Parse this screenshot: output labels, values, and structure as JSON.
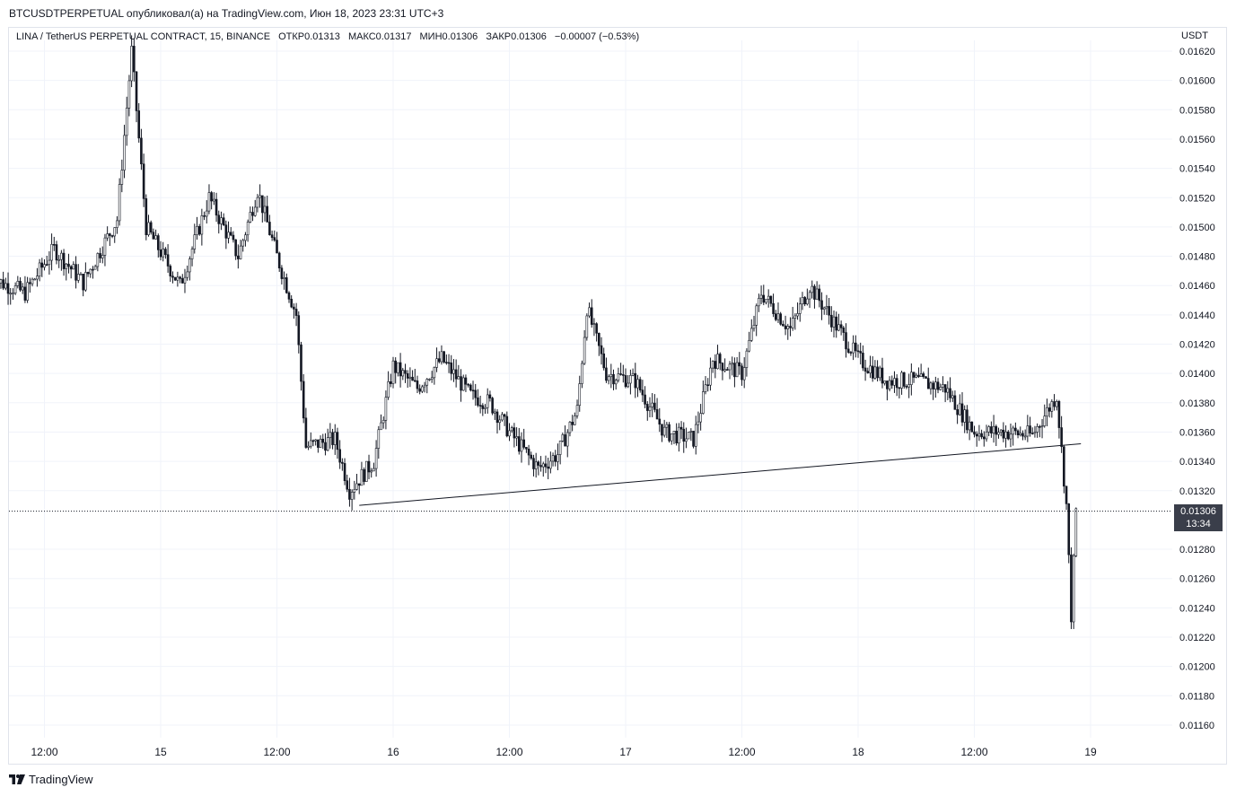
{
  "header": {
    "publisher_line": "BTCUSDTPERPETUAL опубликовал(а) на TradingView.com, Июн 18, 2023 23:31 UTC+3"
  },
  "legend": {
    "symbol": "LINA / TetherUS PERPETUAL CONTRACT, 15, BINANCE",
    "open": "ОТКР0.01313",
    "high": "МАКС0.01317",
    "low": "МИН0.01306",
    "close": "ЗАКР0.01306",
    "change": "−0.00007 (−0.53%)"
  },
  "currency": "USDT",
  "last_price": {
    "price": "0.01306",
    "countdown": "13:34"
  },
  "footer": {
    "brand": "TradingView",
    "logo_icon": "tradingview-logo-icon"
  },
  "colors": {
    "candles": "#131722",
    "grid": "#f0f3fa",
    "axis_text": "#131722",
    "tag_bg": "#3a3e4a"
  },
  "chart_data": {
    "type": "line",
    "title": "LINA / TetherUS PERPETUAL CONTRACT, 15, BINANCE",
    "xlabel": "",
    "ylabel": "",
    "y_ticks": [
      "0.01620",
      "0.01600",
      "0.01580",
      "0.01560",
      "0.01540",
      "0.01520",
      "0.01500",
      "0.01480",
      "0.01460",
      "0.01440",
      "0.01420",
      "0.01400",
      "0.01380",
      "0.01360",
      "0.01340",
      "0.01320",
      "0.01280",
      "0.01260",
      "0.01240",
      "0.01220",
      "0.01200",
      "0.01180",
      "0.01160"
    ],
    "x_ticks": [
      "12:00",
      "15",
      "12:00",
      "16",
      "12:00",
      "17",
      "12:00",
      "18",
      "12:00",
      "19"
    ],
    "ylim": [
      0.01152,
      0.01623
    ],
    "grid": true,
    "approx_close_path": [
      {
        "t": "14 06:30",
        "v": 0.01465
      },
      {
        "t": "14 10:00",
        "v": 0.01455
      },
      {
        "t": "14 13:00",
        "v": 0.01485
      },
      {
        "t": "14 16:00",
        "v": 0.01462
      },
      {
        "t": "14 19:30",
        "v": 0.01505
      },
      {
        "t": "14 21:00",
        "v": 0.0162
      },
      {
        "t": "14 22:30",
        "v": 0.015
      },
      {
        "t": "15 02:00",
        "v": 0.0146
      },
      {
        "t": "15 05:00",
        "v": 0.0152
      },
      {
        "t": "15 08:00",
        "v": 0.0148
      },
      {
        "t": "15 10:00",
        "v": 0.01525
      },
      {
        "t": "15 12:00",
        "v": 0.0148
      },
      {
        "t": "15 14:00",
        "v": 0.0144
      },
      {
        "t": "15 15:00",
        "v": 0.0135
      },
      {
        "t": "15 18:00",
        "v": 0.01355
      },
      {
        "t": "15 19:30",
        "v": 0.0132
      },
      {
        "t": "15 22:00",
        "v": 0.0134
      },
      {
        "t": "16 00:00",
        "v": 0.01405
      },
      {
        "t": "16 02:30",
        "v": 0.0139
      },
      {
        "t": "16 05:00",
        "v": 0.0141
      },
      {
        "t": "16 08:00",
        "v": 0.01385
      },
      {
        "t": "16 10:00",
        "v": 0.0138
      },
      {
        "t": "16 12:00",
        "v": 0.0136
      },
      {
        "t": "16 15:00",
        "v": 0.01335
      },
      {
        "t": "16 17:00",
        "v": 0.01345
      },
      {
        "t": "16 19:00",
        "v": 0.01375
      },
      {
        "t": "16 20:00",
        "v": 0.01445
      },
      {
        "t": "16 22:00",
        "v": 0.014
      },
      {
        "t": "17 01:00",
        "v": 0.01395
      },
      {
        "t": "17 04:00",
        "v": 0.0136
      },
      {
        "t": "17 07:00",
        "v": 0.01355
      },
      {
        "t": "17 09:00",
        "v": 0.0141
      },
      {
        "t": "17 12:00",
        "v": 0.014
      },
      {
        "t": "17 14:00",
        "v": 0.01455
      },
      {
        "t": "17 17:00",
        "v": 0.0143
      },
      {
        "t": "17 19:00",
        "v": 0.0146
      },
      {
        "t": "17 21:00",
        "v": 0.0144
      },
      {
        "t": "18 00:00",
        "v": 0.0141
      },
      {
        "t": "18 03:00",
        "v": 0.01395
      },
      {
        "t": "18 06:00",
        "v": 0.01395
      },
      {
        "t": "18 09:00",
        "v": 0.0139
      },
      {
        "t": "18 12:00",
        "v": 0.0136
      },
      {
        "t": "18 15:00",
        "v": 0.0136
      },
      {
        "t": "18 18:00",
        "v": 0.01358
      },
      {
        "t": "18 20:30",
        "v": 0.01385
      },
      {
        "t": "18 21:30",
        "v": 0.0131
      },
      {
        "t": "18 22:00",
        "v": 0.01235
      },
      {
        "t": "18 22:30",
        "v": 0.01306
      }
    ],
    "trendline": {
      "from": {
        "t": "15 20:30",
        "v": 0.0131
      },
      "to": {
        "t": "18 23:00",
        "v": 0.01352
      }
    },
    "last_price_line": 0.01306
  }
}
